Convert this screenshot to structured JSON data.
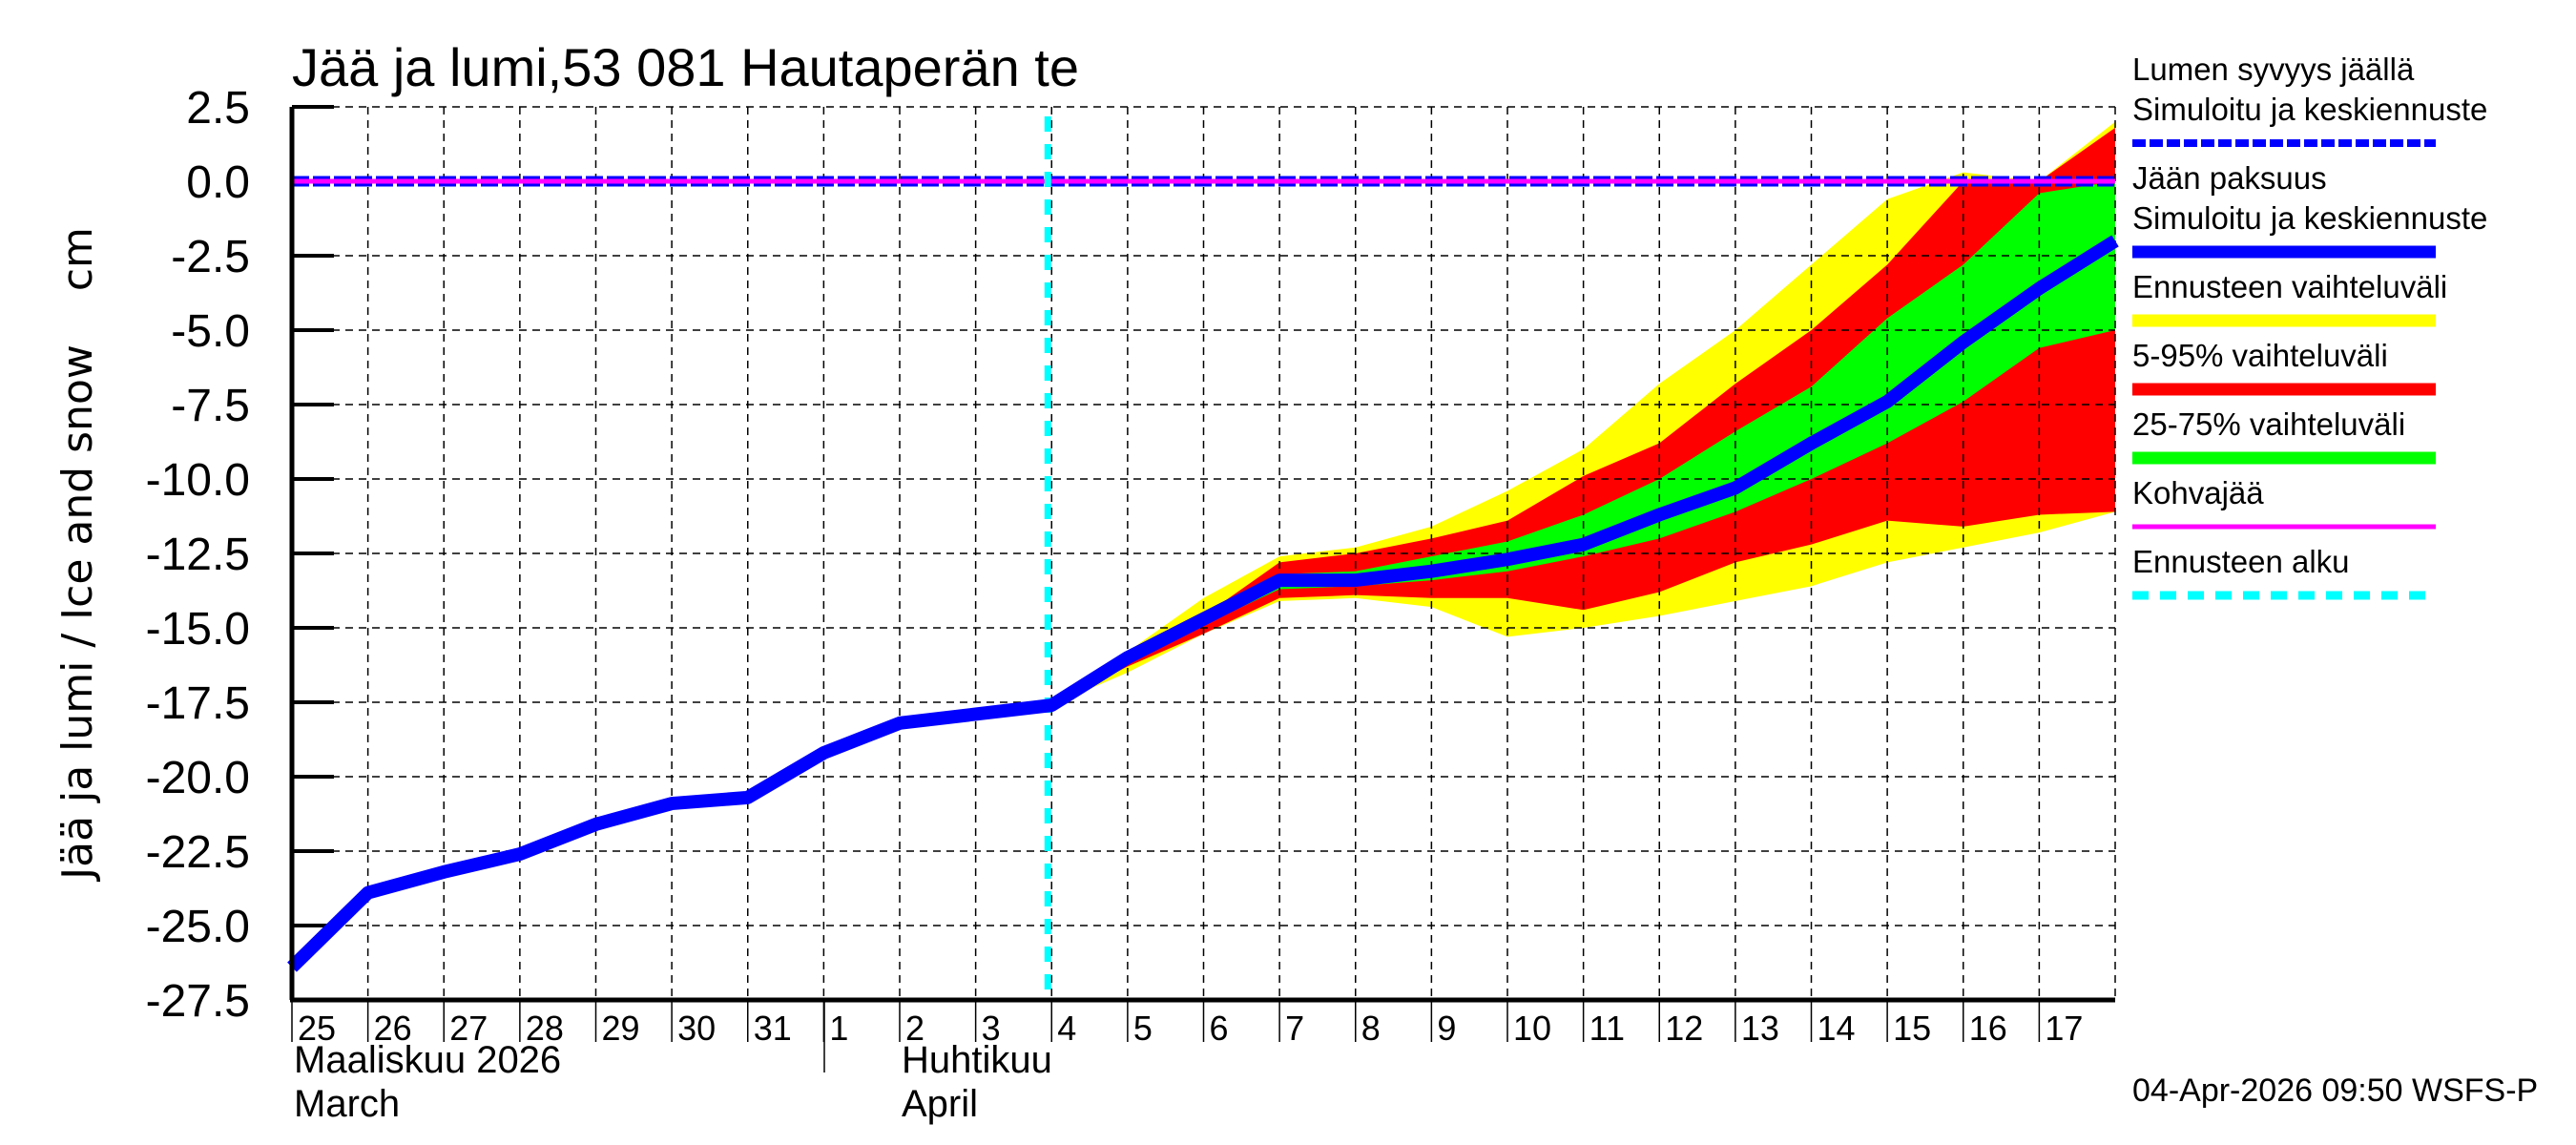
{
  "chart_data": {
    "type": "area",
    "title": "Jää ja lumi,53 081 Hautaperän te",
    "ylabel": "Jää ja lumi / Ice and snow    cm",
    "xlabel": "",
    "ylim": [
      -27.5,
      2.5
    ],
    "yticks": [
      "2.5",
      "0.0",
      "-2.5",
      "-5.0",
      "-7.5",
      "-10.0",
      "-12.5",
      "-15.0",
      "-17.5",
      "-20.0",
      "-22.5",
      "-25.0",
      "-27.5"
    ],
    "xticks": [
      "25",
      "26",
      "27",
      "28",
      "29",
      "30",
      "31",
      "1",
      "2",
      "3",
      "4",
      "5",
      "6",
      "7",
      "8",
      "9",
      "10",
      "11",
      "12",
      "13",
      "14",
      "15",
      "16",
      "17"
    ],
    "month_labels": [
      {
        "line1": "Maaliskuu 2026",
        "line2": "March"
      },
      {
        "line1": "Huhtikuu",
        "line2": "April"
      }
    ],
    "grid": true,
    "legend_position": "right",
    "forecast_start": "4 April",
    "x": [
      "Mar25",
      "Mar26",
      "Mar27",
      "Mar28",
      "Mar29",
      "Mar30",
      "Mar31",
      "Apr1",
      "Apr2",
      "Apr3",
      "Apr4",
      "Apr5",
      "Apr6",
      "Apr7",
      "Apr8",
      "Apr9",
      "Apr10",
      "Apr11",
      "Apr12",
      "Apr13",
      "Apr14",
      "Apr15",
      "Apr16",
      "Apr17",
      "Apr18"
    ],
    "series": [
      {
        "name": "Jään paksuus – Simuloitu ja keskiennuste",
        "color": "#0000ff",
        "values": [
          -26.4,
          -23.9,
          -23.2,
          -22.6,
          -21.6,
          -20.9,
          -20.7,
          -19.2,
          -18.2,
          -17.9,
          -17.6,
          -16.0,
          -14.7,
          -13.4,
          -13.4,
          -13.1,
          -12.7,
          -12.2,
          -11.2,
          -10.3,
          -8.8,
          -7.4,
          -5.4,
          -3.6,
          -2.0
        ]
      },
      {
        "name": "Lumen syvyys jäällä – Simuloitu ja keskiennuste",
        "color": "#0000ff",
        "style": "dashed",
        "values": [
          0,
          0,
          0,
          0,
          0,
          0,
          0,
          0,
          0,
          0,
          0,
          0,
          0,
          0,
          0,
          0,
          0,
          0,
          0,
          0,
          0,
          0,
          0,
          0,
          0
        ]
      },
      {
        "name": "Kohvajää",
        "color": "#ff00ff",
        "values": [
          0,
          0,
          0,
          0,
          0,
          0,
          0,
          0,
          0,
          0,
          0,
          0,
          0,
          0,
          0,
          0,
          0,
          0,
          0,
          0,
          0,
          0,
          0,
          0,
          0
        ]
      }
    ],
    "bands": [
      {
        "name": "Ennusteen vaihteluväli",
        "color": "#ffff00",
        "x_from": "Apr4",
        "upper": [
          -17.6,
          -15.8,
          -14.0,
          -12.6,
          -12.3,
          -11.6,
          -10.4,
          -9.0,
          -6.8,
          -5.0,
          -2.8,
          -0.6,
          0.3,
          0.0,
          2.0
        ],
        "lower": [
          -17.6,
          -16.5,
          -15.2,
          -14.1,
          -14.0,
          -14.3,
          -15.3,
          -15.0,
          -14.6,
          -14.1,
          -13.6,
          -12.8,
          -12.3,
          -11.8,
          -11.1
        ]
      },
      {
        "name": "5-95% vaihteluväli",
        "color": "#ff0000",
        "x_from": "Apr4",
        "upper": [
          -17.6,
          -16.0,
          -14.6,
          -12.8,
          -12.5,
          -12.0,
          -11.4,
          -9.9,
          -8.8,
          -6.8,
          -5.0,
          -2.8,
          0.0,
          0.0,
          1.8
        ],
        "lower": [
          -17.6,
          -16.3,
          -15.2,
          -14.0,
          -13.9,
          -14.0,
          -14.0,
          -14.4,
          -13.8,
          -12.8,
          -12.2,
          -11.4,
          -11.6,
          -11.2,
          -11.1
        ]
      },
      {
        "name": "25-75% vaihteluväli",
        "color": "#00ff00",
        "x_from": "Apr4",
        "upper": [
          -17.6,
          -16.0,
          -14.6,
          -13.2,
          -13.1,
          -12.6,
          -12.1,
          -11.2,
          -10.0,
          -8.4,
          -6.9,
          -4.6,
          -2.8,
          -0.4,
          0.0
        ],
        "lower": [
          -17.6,
          -16.1,
          -14.9,
          -13.7,
          -13.6,
          -13.4,
          -13.1,
          -12.6,
          -12.0,
          -11.1,
          -10.0,
          -8.8,
          -7.4,
          -5.6,
          -5.0
        ]
      }
    ]
  },
  "legend": {
    "items": [
      {
        "line1": "Lumen syvyys jäällä",
        "line2": "Simuloitu ja keskiennuste",
        "color": "#0000ff",
        "style": "dashed"
      },
      {
        "line1": "Jään paksuus",
        "line2": "Simuloitu ja keskiennuste",
        "color": "#0000ff",
        "style": "solid-thick"
      },
      {
        "line1": "Ennusteen vaihteluväli",
        "color": "#ffff00",
        "style": "solid-thick"
      },
      {
        "line1": "5-95% vaihteluväli",
        "color": "#ff0000",
        "style": "solid-thick"
      },
      {
        "line1": "25-75% vaihteluväli",
        "color": "#00ff00",
        "style": "solid-thick"
      },
      {
        "line1": "Kohvajää",
        "color": "#ff00ff",
        "style": "solid"
      },
      {
        "line1": "Ennusteen alku",
        "color": "#00ffff",
        "style": "dotted"
      }
    ]
  },
  "footer": {
    "timestamp": "04-Apr-2026 09:50 WSFS-P"
  }
}
